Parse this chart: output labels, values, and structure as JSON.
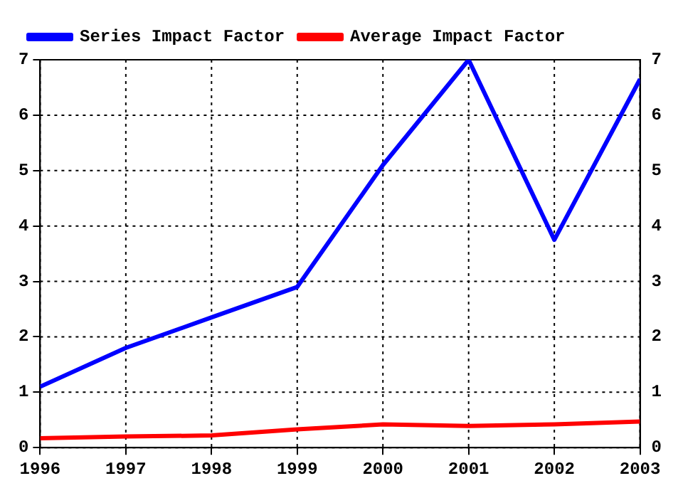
{
  "chart_data": {
    "type": "line",
    "x": [
      1996,
      1997,
      1998,
      1999,
      2000,
      2001,
      2002,
      2003
    ],
    "series": [
      {
        "name": "Series Impact Factor",
        "color": "#0000ff",
        "values": [
          1.1,
          1.8,
          2.35,
          2.9,
          5.1,
          7,
          3.75,
          6.65
        ]
      },
      {
        "name": "Average Impact Factor",
        "color": "#ff0000",
        "values": [
          0.17,
          0.2,
          0.22,
          0.33,
          0.42,
          0.39,
          0.42,
          0.47
        ]
      }
    ],
    "xlim": [
      1996,
      2003
    ],
    "xticks": [
      1996,
      1997,
      1998,
      1999,
      2000,
      2001,
      2002,
      2003
    ],
    "ylim": [
      0,
      7
    ],
    "yticks": [
      0,
      1,
      2,
      3,
      4,
      5,
      6,
      7
    ],
    "y2lim": [
      0,
      7
    ],
    "y2ticks": [
      0,
      1,
      2,
      3,
      4,
      5,
      6,
      7
    ],
    "grid": true,
    "legend": "top left",
    "marker": "none",
    "line_style": "solid"
  }
}
